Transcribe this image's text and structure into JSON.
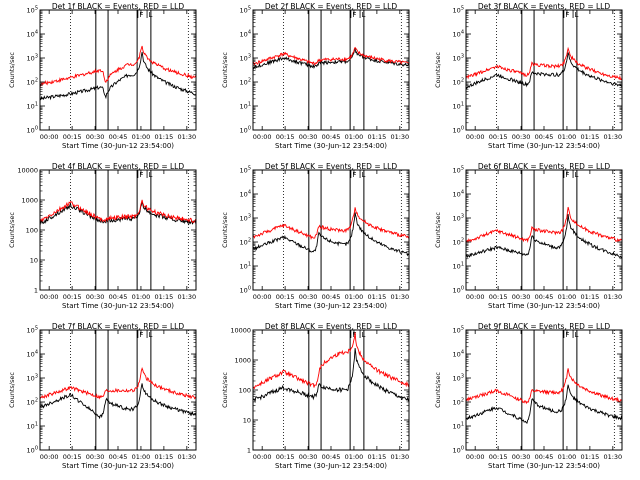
{
  "figure": {
    "xlabel": "Start Time (30-Jun-12 23:54:00)",
    "ylabel": "Counts/sec",
    "xticks": [
      "00:00",
      "00:15",
      "00:30",
      "00:45",
      "01:00",
      "01:15",
      "01:30"
    ],
    "tick_minutes": [
      6,
      21,
      36,
      51,
      66,
      81,
      96
    ],
    "xlim_minutes": [
      0,
      102
    ],
    "colors": {
      "events": "#000000",
      "lld": "#ff0000",
      "background": "#ffffff"
    },
    "markers": {
      "dotted_minutes": [
        20,
        97
      ],
      "solid_minutes": [
        36.5,
        44.5,
        63.5,
        72.5
      ],
      "flag_minutes": [
        64.0,
        70.0
      ],
      "flag_labels": [
        "F",
        "L"
      ]
    }
  },
  "chart_data": [
    {
      "type": "line",
      "title": "Det 1f BLACK = Events, RED = LLD",
      "scale": "log",
      "ylim": [
        1,
        100000
      ],
      "yticks": [
        1,
        10,
        100,
        1000,
        10000,
        100000
      ],
      "ytick_labels": [
        "10^0",
        "10^1",
        "10^2",
        "10^3",
        "10^4",
        "10^5"
      ],
      "series": [
        {
          "name": "Events",
          "values": [
            20,
            32,
            60,
            20,
            200,
            2500,
            32
          ]
        },
        {
          "name": "LLD",
          "values": [
            80,
            150,
            310,
            80,
            550,
            4500,
            150
          ]
        }
      ]
    },
    {
      "type": "line",
      "title": "Det 2f BLACK = Events, RED = LLD",
      "scale": "log",
      "ylim": [
        1,
        100000
      ],
      "yticks": [
        1,
        10,
        100,
        1000,
        10000,
        100000
      ],
      "ytick_labels": [
        "10^0",
        "10^1",
        "10^2",
        "10^3",
        "10^4",
        "10^5"
      ],
      "series": [
        {
          "name": "Events",
          "values": [
            400,
            1000,
            450,
            600,
            700,
            2500,
            500
          ]
        },
        {
          "name": "LLD",
          "values": [
            550,
            1500,
            600,
            800,
            900,
            3000,
            600
          ]
        }
      ]
    },
    {
      "type": "line",
      "title": "Det 3f BLACK = Events, RED = LLD",
      "scale": "log",
      "ylim": [
        1,
        100000
      ],
      "yticks": [
        1,
        10,
        100,
        1000,
        10000,
        100000
      ],
      "ytick_labels": [
        "10^0",
        "10^1",
        "10^2",
        "10^3",
        "10^4",
        "10^5"
      ],
      "series": [
        {
          "name": "Events",
          "values": [
            60,
            200,
            80,
            250,
            200,
            2200,
            70
          ]
        },
        {
          "name": "LLD",
          "values": [
            150,
            450,
            200,
            600,
            450,
            3500,
            140
          ]
        }
      ]
    },
    {
      "type": "line",
      "title": "Det 4f BLACK = Events, RED = LLD",
      "scale": "log",
      "ylim": [
        1,
        10000
      ],
      "yticks": [
        1,
        10,
        100,
        1000,
        10000
      ],
      "ytick_labels": [
        "1",
        "10",
        "100",
        "1000",
        "10000"
      ],
      "series": [
        {
          "name": "Events",
          "values": [
            160,
            650,
            200,
            190,
            240,
            900,
            170
          ]
        },
        {
          "name": "LLD",
          "values": [
            190,
            800,
            230,
            220,
            280,
            1100,
            200
          ]
        }
      ]
    },
    {
      "type": "line",
      "title": "Det 5f BLACK = Events, RED = LLD",
      "scale": "log",
      "ylim": [
        1,
        100000
      ],
      "yticks": [
        1,
        10,
        100,
        1000,
        10000,
        100000
      ],
      "ytick_labels": [
        "10^0",
        "10^1",
        "10^2",
        "10^3",
        "10^4",
        "10^5"
      ],
      "series": [
        {
          "name": "Events",
          "values": [
            50,
            160,
            40,
            250,
            80,
            2500,
            30
          ]
        },
        {
          "name": "LLD",
          "values": [
            160,
            500,
            150,
            500,
            300,
            4000,
            160
          ]
        }
      ]
    },
    {
      "type": "line",
      "title": "Det 6f BLACK = Events, RED = LLD",
      "scale": "log",
      "ylim": [
        1,
        100000
      ],
      "yticks": [
        1,
        10,
        100,
        1000,
        10000,
        100000
      ],
      "ytick_labels": [
        "10^0",
        "10^1",
        "10^2",
        "10^3",
        "10^4",
        "10^5"
      ],
      "series": [
        {
          "name": "Events",
          "values": [
            25,
            60,
            30,
            200,
            60,
            1800,
            25
          ]
        },
        {
          "name": "LLD",
          "values": [
            100,
            300,
            120,
            400,
            250,
            3500,
            110
          ]
        }
      ]
    },
    {
      "type": "line",
      "title": "Det 7f BLACK = Events, RED = LLD",
      "scale": "log",
      "ylim": [
        1,
        100000
      ],
      "yticks": [
        1,
        10,
        100,
        1000,
        10000,
        100000
      ],
      "ytick_labels": [
        "10^0",
        "10^1",
        "10^2",
        "10^3",
        "10^4",
        "10^5"
      ],
      "series": [
        {
          "name": "Events",
          "values": [
            60,
            200,
            25,
            150,
            50,
            800,
            30
          ]
        },
        {
          "name": "LLD",
          "values": [
            150,
            400,
            160,
            300,
            300,
            3500,
            150
          ]
        }
      ]
    },
    {
      "type": "line",
      "title": "Det 8f BLACK = Events, RED = LLD",
      "scale": "log",
      "ylim": [
        1,
        10000
      ],
      "yticks": [
        1,
        10,
        100,
        1000,
        10000
      ],
      "ytick_labels": [
        "1",
        "10",
        "100",
        "1000",
        "10000"
      ],
      "series": [
        {
          "name": "Events",
          "values": [
            45,
            120,
            60,
            150,
            100,
            3000,
            45
          ]
        },
        {
          "name": "LLD",
          "values": [
            120,
            400,
            140,
            350,
            1800,
            9000,
            150
          ]
        }
      ]
    },
    {
      "type": "line",
      "title": "Det 9f BLACK = Events, RED = LLD",
      "scale": "log",
      "ylim": [
        1,
        100000
      ],
      "yticks": [
        1,
        10,
        100,
        1000,
        10000,
        100000
      ],
      "ytick_labels": [
        "10^0",
        "10^1",
        "10^2",
        "10^3",
        "10^4",
        "10^5"
      ],
      "series": [
        {
          "name": "Events",
          "values": [
            20,
            60,
            15,
            150,
            40,
            700,
            20
          ]
        },
        {
          "name": "LLD",
          "values": [
            120,
            300,
            100,
            300,
            250,
            3500,
            110
          ]
        }
      ]
    }
  ]
}
